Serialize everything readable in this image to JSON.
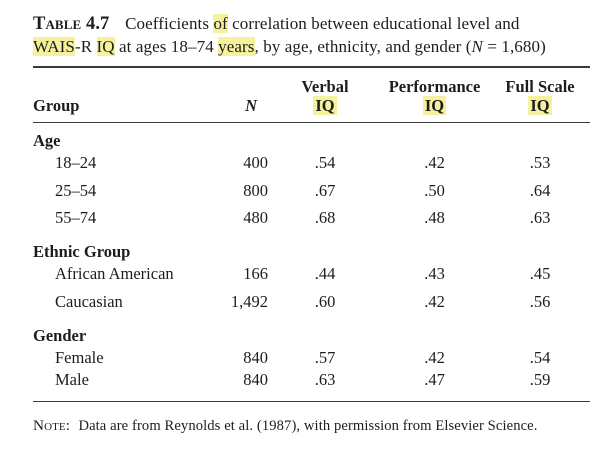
{
  "title": {
    "label": "Table 4.7",
    "segments": [
      {
        "text": "Coefficients "
      },
      {
        "text": "of",
        "hl": true
      },
      {
        "text": " correlation between educational level and"
      },
      {
        "br": true
      },
      {
        "text": "WAIS",
        "hl": true
      },
      {
        "text": "-R "
      },
      {
        "text": "IQ",
        "hl": true
      },
      {
        "text": " at ages 18–74 "
      },
      {
        "text": "years",
        "hl": true
      },
      {
        "text": ", by age, ethnicity, and gender ("
      },
      {
        "text": "N",
        "italic": true
      },
      {
        "text": " = 1,680)"
      }
    ]
  },
  "table": {
    "columns": [
      {
        "label": "Group"
      },
      {
        "label": "N"
      },
      {
        "top": "Verbal",
        "bottom": "IQ"
      },
      {
        "top": "Performance",
        "bottom": "IQ"
      },
      {
        "top": "Full Scale",
        "bottom": "IQ"
      }
    ],
    "sections": [
      {
        "header": "Age",
        "rows": [
          [
            "18–24",
            "400",
            ".54",
            ".42",
            ".53"
          ],
          [
            "25–54",
            "800",
            ".67",
            ".50",
            ".64"
          ],
          [
            "55–74",
            "480",
            ".68",
            ".48",
            ".63"
          ]
        ]
      },
      {
        "header": "Ethnic Group",
        "rows": [
          [
            "African American",
            "166",
            ".44",
            ".43",
            ".45"
          ],
          [
            "Caucasian",
            "1,492",
            ".60",
            ".42",
            ".56"
          ]
        ]
      },
      {
        "header": "Gender",
        "rows": [
          [
            "Female",
            "840",
            ".57",
            ".42",
            ".54"
          ],
          [
            "Male",
            "840",
            ".63",
            ".47",
            ".59"
          ]
        ]
      }
    ]
  },
  "note": {
    "label": "Note:",
    "text": "Data are from Reynolds et al. (1987), with permission from Elsevier Science."
  },
  "colors": {
    "highlight": "#f5f19c",
    "text": "#1d1d1d",
    "rule": "#3a3a3a",
    "background": "#ffffff"
  }
}
